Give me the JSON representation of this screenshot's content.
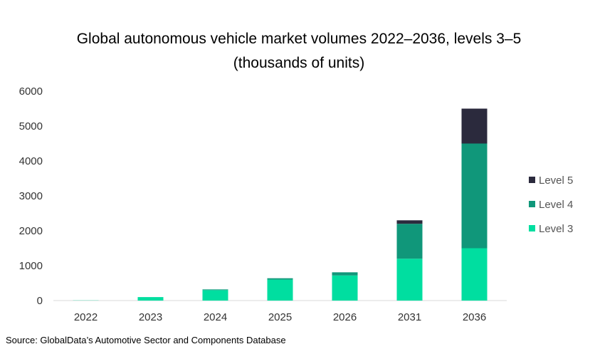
{
  "chart_data": {
    "type": "bar",
    "stacked": true,
    "title": "Global autonomous vehicle market volumes 2022–2036, levels 3–5 (thousands of units)",
    "xlabel": "",
    "ylabel": "",
    "categories": [
      "2022",
      "2023",
      "2024",
      "2025",
      "2026",
      "2031",
      "2036"
    ],
    "series": [
      {
        "name": "Level 3",
        "color": "#00dea0",
        "values": [
          5,
          100,
          300,
          600,
          720,
          1200,
          1500
        ]
      },
      {
        "name": "Level 4",
        "color": "#10977a",
        "values": [
          0,
          0,
          20,
          40,
          90,
          1000,
          3000
        ]
      },
      {
        "name": "Level 5",
        "color": "#2b2a3d",
        "values": [
          0,
          0,
          0,
          0,
          0,
          100,
          1000
        ]
      }
    ],
    "ylim": [
      0,
      6000
    ],
    "yticks": [
      0,
      1000,
      2000,
      3000,
      4000,
      5000,
      6000
    ],
    "grid": false,
    "legend_position": "right",
    "legend_order": [
      "Level 5",
      "Level 4",
      "Level 3"
    ]
  },
  "source": "Source: GlobalData’s Automotive Sector and Components Database"
}
